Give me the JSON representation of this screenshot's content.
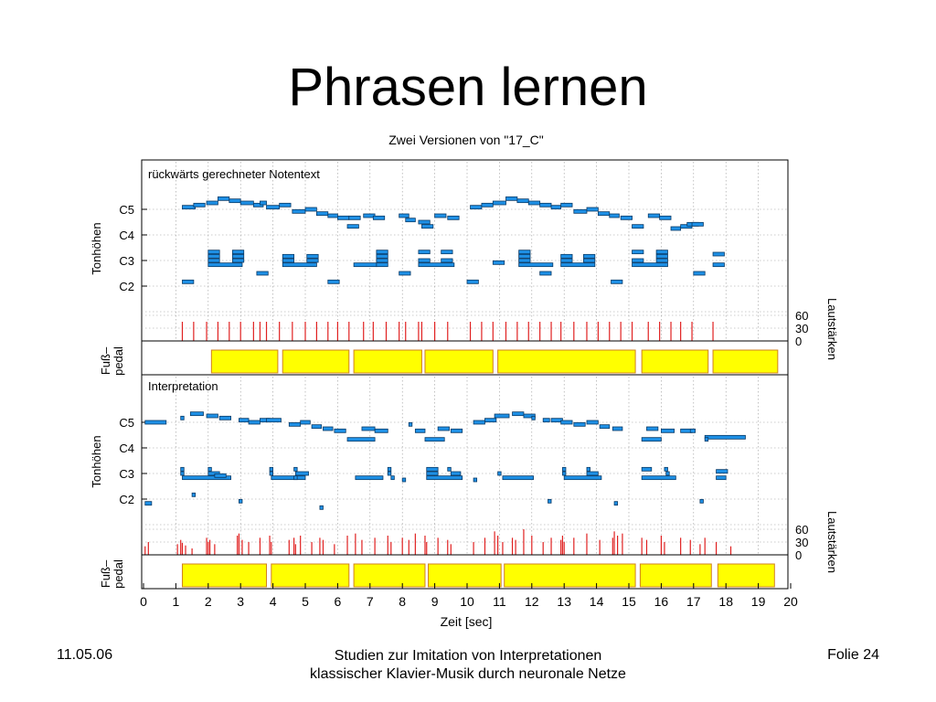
{
  "slide": {
    "title": "Phrasen lernen",
    "footer_date": "11.05.06",
    "footer_center_line1": "Studien zur Imitation von Interpretationen",
    "footer_center_line2": "klassischer Klavier-Musik durch neuronale Netze",
    "footer_folie": "Folie 24"
  },
  "chart_data": {
    "type": "piano-roll",
    "title": "Zwei Versionen von \"17_C\"",
    "xlabel": "Zeit [sec]",
    "xlim": [
      0,
      20
    ],
    "x_ticks": [
      0,
      1,
      2,
      3,
      4,
      5,
      6,
      7,
      8,
      9,
      10,
      11,
      12,
      13,
      14,
      15,
      16,
      17,
      18,
      19,
      20
    ],
    "pitch_ticks": [
      {
        "label": "C2",
        "midi": 36
      },
      {
        "label": "C3",
        "midi": 48
      },
      {
        "label": "C4",
        "midi": 60
      },
      {
        "label": "C5",
        "midi": 72
      }
    ],
    "loudness_ticks": [
      0,
      30,
      60
    ],
    "loudness_label": "Lautstärken",
    "pitch_label": "Tonhöhen",
    "pedal_label_line1": "Fuß–",
    "pedal_label_line2": "pedal",
    "colors": {
      "note": "#1e90e6",
      "note_stroke": "#0a3a66",
      "velocity": "#e02020",
      "pedal": "#ffff00",
      "pedal_stroke": "#d08020",
      "grid": "#9a9a9a"
    },
    "panels": [
      {
        "name": "rückwärts gerechneter Notentext",
        "notes": [
          [
            1.2,
            0.4,
            73
          ],
          [
            1.55,
            0.35,
            74
          ],
          [
            1.95,
            0.35,
            75
          ],
          [
            2.3,
            0.35,
            77
          ],
          [
            2.65,
            0.35,
            76
          ],
          [
            3.0,
            0.4,
            75
          ],
          [
            3.4,
            0.3,
            74
          ],
          [
            3.6,
            0.2,
            75
          ],
          [
            3.8,
            0.4,
            73
          ],
          [
            4.2,
            0.35,
            74
          ],
          [
            4.6,
            0.4,
            71
          ],
          [
            5.0,
            0.35,
            72
          ],
          [
            5.35,
            0.35,
            70
          ],
          [
            5.7,
            0.3,
            69
          ],
          [
            6.0,
            0.35,
            68
          ],
          [
            6.35,
            0.35,
            68
          ],
          [
            2.0,
            0.35,
            52
          ],
          [
            2.0,
            0.35,
            50
          ],
          [
            2.0,
            0.35,
            48
          ],
          [
            2.0,
            1.05,
            46
          ],
          [
            2.75,
            0.35,
            52
          ],
          [
            2.75,
            0.35,
            50
          ],
          [
            2.75,
            0.35,
            48
          ],
          [
            3.5,
            0.35,
            42
          ],
          [
            4.3,
            0.35,
            50
          ],
          [
            4.3,
            0.35,
            48
          ],
          [
            4.3,
            1.05,
            46
          ],
          [
            5.05,
            0.35,
            50
          ],
          [
            5.05,
            0.35,
            48
          ],
          [
            1.2,
            0.35,
            38
          ],
          [
            5.7,
            0.35,
            38
          ],
          [
            6.3,
            0.35,
            64
          ],
          [
            6.8,
            0.35,
            69
          ],
          [
            7.1,
            0.35,
            68
          ],
          [
            6.5,
            0.7,
            46
          ],
          [
            7.2,
            0.35,
            52
          ],
          [
            7.2,
            0.35,
            50
          ],
          [
            7.2,
            0.35,
            48
          ],
          [
            7.2,
            0.35,
            46
          ],
          [
            7.9,
            0.35,
            42
          ],
          [
            7.9,
            0.3,
            69
          ],
          [
            8.1,
            0.3,
            67
          ],
          [
            8.5,
            0.35,
            66
          ],
          [
            8.6,
            0.35,
            64
          ],
          [
            8.5,
            0.35,
            52
          ],
          [
            8.5,
            0.35,
            48
          ],
          [
            8.5,
            1.1,
            46
          ],
          [
            9.2,
            0.35,
            52
          ],
          [
            9.2,
            0.35,
            48
          ],
          [
            9.0,
            0.35,
            69
          ],
          [
            9.4,
            0.35,
            68
          ],
          [
            10.1,
            0.35,
            73
          ],
          [
            10.45,
            0.35,
            74
          ],
          [
            10.8,
            0.4,
            75
          ],
          [
            11.2,
            0.35,
            77
          ],
          [
            11.55,
            0.35,
            76
          ],
          [
            11.9,
            0.35,
            75
          ],
          [
            12.25,
            0.35,
            74
          ],
          [
            12.6,
            0.3,
            73
          ],
          [
            12.9,
            0.35,
            74
          ],
          [
            13.3,
            0.4,
            71
          ],
          [
            13.7,
            0.35,
            72
          ],
          [
            14.05,
            0.35,
            70
          ],
          [
            14.4,
            0.3,
            69
          ],
          [
            14.75,
            0.35,
            68
          ],
          [
            10.8,
            0.35,
            47
          ],
          [
            11.6,
            0.35,
            52
          ],
          [
            11.6,
            0.35,
            50
          ],
          [
            11.6,
            0.35,
            48
          ],
          [
            11.6,
            1.05,
            46
          ],
          [
            12.25,
            0.35,
            42
          ],
          [
            12.9,
            0.35,
            50
          ],
          [
            12.9,
            0.35,
            48
          ],
          [
            12.9,
            1.05,
            46
          ],
          [
            13.6,
            0.35,
            50
          ],
          [
            13.6,
            0.35,
            48
          ],
          [
            10.0,
            0.35,
            38
          ],
          [
            14.45,
            0.35,
            38
          ],
          [
            15.1,
            0.35,
            64
          ],
          [
            15.6,
            0.35,
            69
          ],
          [
            15.95,
            0.35,
            68
          ],
          [
            15.1,
            0.35,
            52
          ],
          [
            15.1,
            0.35,
            48
          ],
          [
            15.1,
            1.1,
            46
          ],
          [
            15.85,
            0.35,
            52
          ],
          [
            15.85,
            0.35,
            50
          ],
          [
            15.85,
            0.35,
            48
          ],
          [
            16.3,
            0.3,
            63
          ],
          [
            16.6,
            0.35,
            64
          ],
          [
            16.8,
            0.35,
            65
          ],
          [
            16.95,
            0.35,
            65
          ],
          [
            17.0,
            0.35,
            42
          ],
          [
            17.6,
            0.35,
            51
          ],
          [
            17.6,
            0.35,
            46
          ]
        ],
        "velocity_onsets": [
          1.2,
          1.55,
          1.95,
          2.3,
          2.65,
          3.0,
          3.4,
          3.6,
          3.8,
          4.2,
          4.6,
          5.0,
          5.35,
          5.7,
          6.0,
          6.35,
          6.8,
          7.1,
          7.5,
          7.9,
          8.1,
          8.5,
          8.6,
          9.0,
          9.4,
          10.1,
          10.45,
          10.8,
          11.2,
          11.55,
          11.9,
          12.25,
          12.6,
          12.9,
          13.3,
          13.7,
          14.05,
          14.4,
          14.75,
          15.1,
          15.6,
          15.95,
          16.3,
          16.6,
          16.95,
          17.6
        ],
        "velocity_value": 45,
        "pedal": [
          [
            2.1,
            4.15
          ],
          [
            4.3,
            6.35
          ],
          [
            6.5,
            8.6
          ],
          [
            8.7,
            10.8
          ],
          [
            10.95,
            15.2
          ],
          [
            15.4,
            17.45
          ],
          [
            17.6,
            19.6
          ]
        ]
      },
      {
        "name": "Interpretation",
        "notes": [
          [
            0.05,
            0.65,
            72
          ],
          [
            1.15,
            0.1,
            74
          ],
          [
            1.45,
            0.4,
            76
          ],
          [
            1.95,
            0.35,
            75
          ],
          [
            2.35,
            0.35,
            74
          ],
          [
            2.95,
            0.3,
            73
          ],
          [
            3.25,
            0.35,
            72
          ],
          [
            3.6,
            0.3,
            73
          ],
          [
            3.8,
            0.45,
            73
          ],
          [
            4.5,
            0.35,
            71
          ],
          [
            4.85,
            0.3,
            72
          ],
          [
            5.2,
            0.3,
            70
          ],
          [
            5.55,
            0.3,
            69
          ],
          [
            5.9,
            0.35,
            68
          ],
          [
            1.15,
            0.1,
            50
          ],
          [
            1.15,
            0.1,
            48
          ],
          [
            1.2,
            1.5,
            46
          ],
          [
            2.0,
            0.1,
            50
          ],
          [
            2.0,
            0.35,
            48
          ],
          [
            2.2,
            0.35,
            47
          ],
          [
            3.9,
            0.1,
            50
          ],
          [
            3.9,
            0.1,
            48
          ],
          [
            3.95,
            1.05,
            46
          ],
          [
            4.65,
            0.1,
            50
          ],
          [
            4.7,
            0.4,
            48
          ],
          [
            4.65,
            0.1,
            46
          ],
          [
            1.5,
            0.1,
            38
          ],
          [
            2.95,
            0.1,
            35
          ],
          [
            5.45,
            0.1,
            32
          ],
          [
            0.05,
            0.2,
            34
          ],
          [
            6.3,
            0.85,
            64
          ],
          [
            6.75,
            0.4,
            69
          ],
          [
            7.15,
            0.4,
            68
          ],
          [
            6.55,
            0.85,
            46
          ],
          [
            7.55,
            0.1,
            50
          ],
          [
            7.55,
            0.1,
            48
          ],
          [
            7.65,
            0.1,
            46
          ],
          [
            8.0,
            0.1,
            45
          ],
          [
            8.2,
            0.1,
            71
          ],
          [
            8.4,
            0.3,
            68
          ],
          [
            8.7,
            0.6,
            64
          ],
          [
            8.75,
            0.35,
            50
          ],
          [
            8.75,
            0.35,
            48
          ],
          [
            8.75,
            1.1,
            46
          ],
          [
            9.4,
            0.1,
            50
          ],
          [
            9.5,
            0.3,
            48
          ],
          [
            9.1,
            0.35,
            69
          ],
          [
            9.5,
            0.35,
            68
          ],
          [
            10.2,
            0.1,
            45
          ],
          [
            10.2,
            0.35,
            72
          ],
          [
            10.55,
            0.35,
            73
          ],
          [
            10.85,
            0.45,
            75
          ],
          [
            11.4,
            0.35,
            76
          ],
          [
            11.75,
            0.35,
            75
          ],
          [
            12.0,
            0.1,
            74
          ],
          [
            12.35,
            0.2,
            73
          ],
          [
            12.6,
            0.35,
            73
          ],
          [
            12.9,
            0.35,
            72
          ],
          [
            13.3,
            0.35,
            71
          ],
          [
            13.7,
            0.35,
            72
          ],
          [
            14.1,
            0.3,
            70
          ],
          [
            14.5,
            0.3,
            69
          ],
          [
            10.95,
            0.1,
            48
          ],
          [
            11.1,
            0.95,
            46
          ],
          [
            12.5,
            0.1,
            35
          ],
          [
            12.95,
            0.1,
            50
          ],
          [
            12.95,
            0.1,
            48
          ],
          [
            13.0,
            1.15,
            46
          ],
          [
            13.7,
            0.1,
            50
          ],
          [
            13.7,
            0.35,
            48
          ],
          [
            14.55,
            0.1,
            34
          ],
          [
            15.4,
            0.6,
            64
          ],
          [
            15.55,
            0.35,
            69
          ],
          [
            16.0,
            0.4,
            68
          ],
          [
            15.4,
            0.3,
            50
          ],
          [
            15.4,
            1.05,
            46
          ],
          [
            16.1,
            0.1,
            50
          ],
          [
            16.15,
            0.1,
            48
          ],
          [
            16.6,
            0.35,
            68
          ],
          [
            16.9,
            0.15,
            68
          ],
          [
            17.35,
            1.25,
            65
          ],
          [
            17.35,
            0.1,
            64
          ],
          [
            17.2,
            0.1,
            35
          ],
          [
            17.7,
            0.35,
            49
          ],
          [
            17.7,
            0.3,
            46
          ]
        ],
        "velocity_onsets": [
          0.05,
          0.15,
          1.05,
          1.15,
          1.2,
          1.3,
          1.5,
          1.95,
          2.0,
          2.05,
          2.2,
          2.9,
          2.95,
          3.05,
          3.25,
          3.6,
          3.9,
          3.95,
          4.5,
          4.65,
          4.7,
          4.85,
          5.2,
          5.45,
          5.55,
          5.9,
          6.3,
          6.55,
          6.75,
          7.15,
          7.55,
          7.65,
          8.0,
          8.2,
          8.4,
          8.7,
          8.75,
          9.1,
          9.4,
          9.5,
          10.2,
          10.55,
          10.85,
          10.95,
          11.1,
          11.4,
          11.5,
          11.75,
          12.0,
          12.35,
          12.6,
          12.9,
          12.95,
          13.0,
          13.3,
          13.7,
          14.1,
          14.5,
          14.55,
          14.65,
          14.8,
          15.4,
          15.55,
          16.0,
          16.1,
          16.6,
          16.9,
          17.2,
          17.35,
          17.7,
          18.15
        ],
        "velocity_values": [
          20,
          30,
          25,
          35,
          28,
          22,
          15,
          40,
          30,
          35,
          25,
          45,
          50,
          35,
          30,
          40,
          45,
          30,
          35,
          40,
          25,
          45,
          30,
          40,
          35,
          25,
          45,
          50,
          35,
          40,
          45,
          30,
          40,
          35,
          50,
          45,
          30,
          40,
          35,
          25,
          30,
          40,
          55,
          45,
          30,
          40,
          35,
          60,
          45,
          30,
          40,
          35,
          45,
          30,
          40,
          50,
          35,
          40,
          55,
          45,
          50,
          40,
          35,
          45,
          30,
          40,
          35,
          25,
          40,
          30,
          20
        ],
        "pedal": [
          [
            1.2,
            3.8
          ],
          [
            3.95,
            6.35
          ],
          [
            6.5,
            8.7
          ],
          [
            8.8,
            11.05
          ],
          [
            11.15,
            15.2
          ],
          [
            15.35,
            17.55
          ],
          [
            17.75,
            19.5
          ]
        ]
      }
    ]
  }
}
